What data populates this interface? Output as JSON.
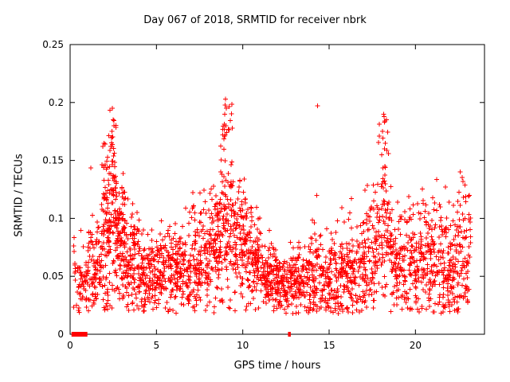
{
  "chart_data": {
    "type": "scatter",
    "title": "Day 067 of 2018, SRMTID for receiver nbrk",
    "xlabel": "GPS time / hours",
    "ylabel": "SRMTID / TECUs",
    "xlim": [
      0,
      24
    ],
    "ylim": [
      0,
      0.25
    ],
    "xticks": {
      "values": [
        0,
        5,
        10,
        15,
        20
      ],
      "labels": [
        "0",
        "5",
        "10",
        "15",
        "20"
      ]
    },
    "yticks": {
      "values": [
        0,
        0.05,
        0.1,
        0.15,
        0.2,
        0.25
      ],
      "labels": [
        "0",
        "0.05",
        "0.1",
        "0.15",
        "0.2",
        "0.25"
      ]
    },
    "marker": "plus",
    "point_color": "#ff0000",
    "border_color": "#000000",
    "grid": false,
    "legend": "none",
    "seed": 20180067,
    "baseline_mean": 0.055,
    "spikes": [
      {
        "x": 2.5,
        "peak": 0.195
      },
      {
        "x": 9.0,
        "peak": 0.203
      },
      {
        "x": 14.3,
        "peak": 0.197
      },
      {
        "x": 18.2,
        "peak": 0.19
      }
    ],
    "zero_segments": [
      [
        0.08,
        1.0
      ],
      [
        12.62,
        12.78
      ]
    ],
    "bins": [
      {
        "x0": 0.2,
        "x1": 1.0,
        "n": 60,
        "mean": 0.045,
        "sd": 0.015,
        "max": 0.09,
        "tail": 0.02
      },
      {
        "x0": 1.0,
        "x1": 1.8,
        "n": 90,
        "mean": 0.055,
        "sd": 0.02,
        "max": 0.17,
        "tail": 0.03
      },
      {
        "x0": 1.8,
        "x1": 2.2,
        "n": 80,
        "mean": 0.08,
        "sd": 0.03,
        "max": 0.165,
        "tail": 0.06
      },
      {
        "x0": 2.2,
        "x1": 2.7,
        "n": 110,
        "mean": 0.1,
        "sd": 0.035,
        "max": 0.195,
        "tail": 0.1
      },
      {
        "x0": 2.7,
        "x1": 3.2,
        "n": 100,
        "mean": 0.08,
        "sd": 0.025,
        "max": 0.14,
        "tail": 0.05
      },
      {
        "x0": 3.2,
        "x1": 4.0,
        "n": 110,
        "mean": 0.06,
        "sd": 0.02,
        "max": 0.12,
        "tail": 0.03
      },
      {
        "x0": 4.0,
        "x1": 5.0,
        "n": 120,
        "mean": 0.05,
        "sd": 0.015,
        "max": 0.1,
        "tail": 0.03
      },
      {
        "x0": 5.0,
        "x1": 6.0,
        "n": 120,
        "mean": 0.055,
        "sd": 0.015,
        "max": 0.105,
        "tail": 0.03
      },
      {
        "x0": 6.0,
        "x1": 7.0,
        "n": 120,
        "mean": 0.055,
        "sd": 0.015,
        "max": 0.11,
        "tail": 0.03
      },
      {
        "x0": 7.0,
        "x1": 8.0,
        "n": 120,
        "mean": 0.06,
        "sd": 0.02,
        "max": 0.125,
        "tail": 0.04
      },
      {
        "x0": 8.0,
        "x1": 8.7,
        "n": 100,
        "mean": 0.075,
        "sd": 0.025,
        "max": 0.15,
        "tail": 0.05
      },
      {
        "x0": 8.7,
        "x1": 9.4,
        "n": 110,
        "mean": 0.1,
        "sd": 0.04,
        "max": 0.2,
        "tail": 0.12
      },
      {
        "x0": 9.4,
        "x1": 10.2,
        "n": 110,
        "mean": 0.08,
        "sd": 0.025,
        "max": 0.135,
        "tail": 0.05
      },
      {
        "x0": 10.2,
        "x1": 11.0,
        "n": 110,
        "mean": 0.065,
        "sd": 0.02,
        "max": 0.11,
        "tail": 0.03
      },
      {
        "x0": 11.0,
        "x1": 12.0,
        "n": 120,
        "mean": 0.05,
        "sd": 0.015,
        "max": 0.09,
        "tail": 0.02
      },
      {
        "x0": 12.0,
        "x1": 13.0,
        "n": 120,
        "mean": 0.045,
        "sd": 0.012,
        "max": 0.08,
        "tail": 0.02
      },
      {
        "x0": 13.0,
        "x1": 14.0,
        "n": 110,
        "mean": 0.045,
        "sd": 0.015,
        "max": 0.09,
        "tail": 0.02
      },
      {
        "x0": 14.0,
        "x1": 15.0,
        "n": 110,
        "mean": 0.05,
        "sd": 0.02,
        "max": 0.12,
        "tail": 0.03
      },
      {
        "x0": 15.0,
        "x1": 16.0,
        "n": 110,
        "mean": 0.05,
        "sd": 0.018,
        "max": 0.11,
        "tail": 0.03
      },
      {
        "x0": 16.0,
        "x1": 17.0,
        "n": 110,
        "mean": 0.055,
        "sd": 0.02,
        "max": 0.12,
        "tail": 0.04
      },
      {
        "x0": 17.0,
        "x1": 17.8,
        "n": 100,
        "mean": 0.065,
        "sd": 0.025,
        "max": 0.13,
        "tail": 0.05
      },
      {
        "x0": 17.8,
        "x1": 18.6,
        "n": 100,
        "mean": 0.09,
        "sd": 0.035,
        "max": 0.19,
        "tail": 0.1
      },
      {
        "x0": 18.6,
        "x1": 19.5,
        "n": 100,
        "mean": 0.06,
        "sd": 0.02,
        "max": 0.12,
        "tail": 0.04
      },
      {
        "x0": 19.5,
        "x1": 20.5,
        "n": 110,
        "mean": 0.06,
        "sd": 0.02,
        "max": 0.13,
        "tail": 0.04
      },
      {
        "x0": 20.5,
        "x1": 21.5,
        "n": 110,
        "mean": 0.065,
        "sd": 0.022,
        "max": 0.135,
        "tail": 0.05
      },
      {
        "x0": 21.5,
        "x1": 22.3,
        "n": 100,
        "mean": 0.06,
        "sd": 0.022,
        "max": 0.13,
        "tail": 0.05
      },
      {
        "x0": 22.3,
        "x1": 23.2,
        "n": 100,
        "mean": 0.07,
        "sd": 0.03,
        "max": 0.145,
        "tail": 0.06
      }
    ],
    "outliers": [
      [
        2.45,
        0.195
      ],
      [
        2.5,
        0.185
      ],
      [
        2.42,
        0.175
      ],
      [
        1.95,
        0.165
      ],
      [
        9.0,
        0.203
      ],
      [
        9.05,
        0.195
      ],
      [
        8.95,
        0.19
      ],
      [
        9.02,
        0.18
      ],
      [
        8.98,
        0.172
      ],
      [
        14.32,
        0.197
      ],
      [
        18.15,
        0.19
      ],
      [
        18.2,
        0.183
      ],
      [
        18.1,
        0.175
      ],
      [
        18.25,
        0.165
      ],
      [
        22.6,
        0.14
      ],
      [
        22.75,
        0.132
      ]
    ]
  }
}
